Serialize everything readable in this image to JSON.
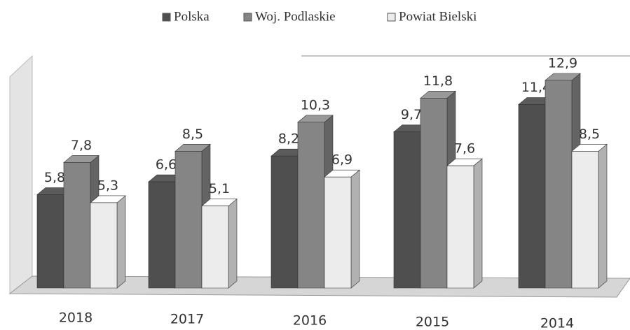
{
  "chart_data": {
    "type": "bar3d",
    "categories": [
      "2018",
      "2017",
      "2016",
      "2015",
      "2014"
    ],
    "series": [
      {
        "name": "Polska",
        "color": "#4f4f4f",
        "values": [
          5.8,
          6.6,
          8.2,
          9.7,
          11.4
        ],
        "value_labels": [
          "5,8",
          "6,6",
          "8,2",
          "9,7",
          "11,4"
        ]
      },
      {
        "name": "Woj. Podlaskie",
        "color": "#858585",
        "values": [
          7.8,
          8.5,
          10.3,
          11.8,
          12.9
        ],
        "value_labels": [
          "7,8",
          "8,5",
          "10,3",
          "11,8",
          "12,9"
        ]
      },
      {
        "name": "Powiat Bielski",
        "color": "#ececec",
        "values": [
          5.3,
          5.1,
          6.9,
          7.6,
          8.5
        ],
        "value_labels": [
          "5,3",
          "5,1",
          "6,9",
          "7,6",
          "8,5"
        ]
      }
    ],
    "legend": "top"
  }
}
